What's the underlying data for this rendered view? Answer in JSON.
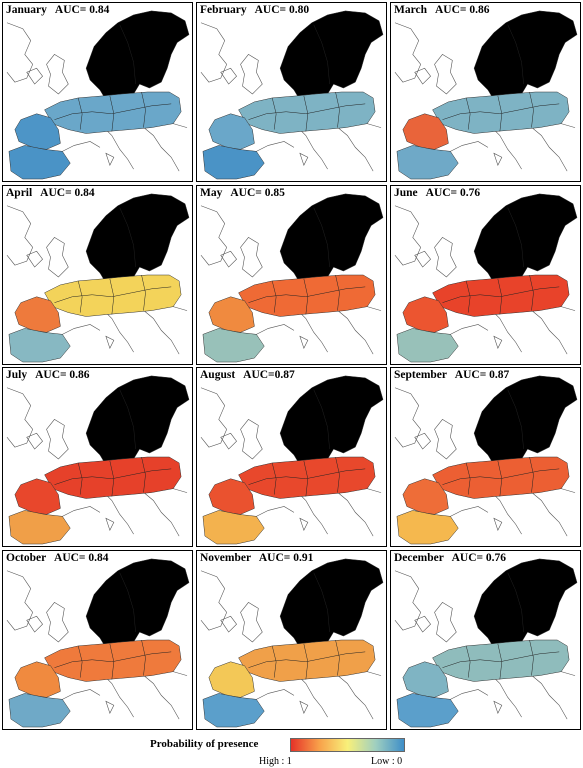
{
  "panels": [
    {
      "title": "January   AUC= 0.84",
      "colors": {
        "north": "#5b9fcb",
        "central": "#6aa7c9",
        "west": "#4d95c7",
        "iberia": "#4a93c6"
      }
    },
    {
      "title": "February   AUC= 0.80",
      "colors": {
        "north": "#5b9fcb",
        "central": "#7eb3c4",
        "west": "#6aa7c9",
        "iberia": "#4a93c6"
      }
    },
    {
      "title": "March   AUC= 0.86",
      "colors": {
        "north": "#5b9fcb",
        "central": "#7eb3c4",
        "west": "#e9643a",
        "iberia": "#6fa9c7"
      }
    },
    {
      "title": "April   AUC= 0.84",
      "colors": {
        "north": "#c7d97f",
        "central": "#f3d35a",
        "west": "#ee7a3c",
        "iberia": "#87b8c2"
      }
    },
    {
      "title": "May   AUC= 0.85",
      "colors": {
        "north": "#f2cc5a",
        "central": "#ef6a35",
        "west": "#f08a3f",
        "iberia": "#98c1b9"
      }
    },
    {
      "title": "June   AUC= 0.76",
      "colors": {
        "north": "#f0a049",
        "central": "#e8432a",
        "west": "#ec5530",
        "iberia": "#98c1b9"
      }
    },
    {
      "title": "July   AUC= 0.86",
      "colors": {
        "north": "#f5b84e",
        "central": "#e6412a",
        "west": "#e8472c",
        "iberia": "#f09f48"
      }
    },
    {
      "title": "August   AUC=0.87",
      "colors": {
        "north": "#f3b04c",
        "central": "#e8482c",
        "west": "#ea522f",
        "iberia": "#f3b24e"
      }
    },
    {
      "title": "September   AUC= 0.87",
      "colors": {
        "north": "#f2c457",
        "central": "#ec5f33",
        "west": "#ee6d38",
        "iberia": "#f5b84e"
      }
    },
    {
      "title": "October   AUC= 0.84",
      "colors": {
        "north": "#f0d663",
        "central": "#ef7a3c",
        "west": "#f08a3f",
        "iberia": "#6fa9c7"
      }
    },
    {
      "title": "November   AUC= 0.91",
      "colors": {
        "north": "#9ec5b5",
        "central": "#f0a049",
        "west": "#f3c857",
        "iberia": "#5b9fcb"
      }
    },
    {
      "title": "December   AUC= 0.76",
      "colors": {
        "north": "#6aa7c9",
        "central": "#8fbcbc",
        "west": "#7fb4c3",
        "iberia": "#5b9fcb"
      }
    }
  ],
  "legend": {
    "title": "Probability of presence",
    "high_label": "High : 1",
    "low_label": "Low : 0",
    "gradient_colors": [
      "#e53228",
      "#f8a14a",
      "#f8f07a",
      "#9fcfc0",
      "#3e8ec8"
    ]
  }
}
